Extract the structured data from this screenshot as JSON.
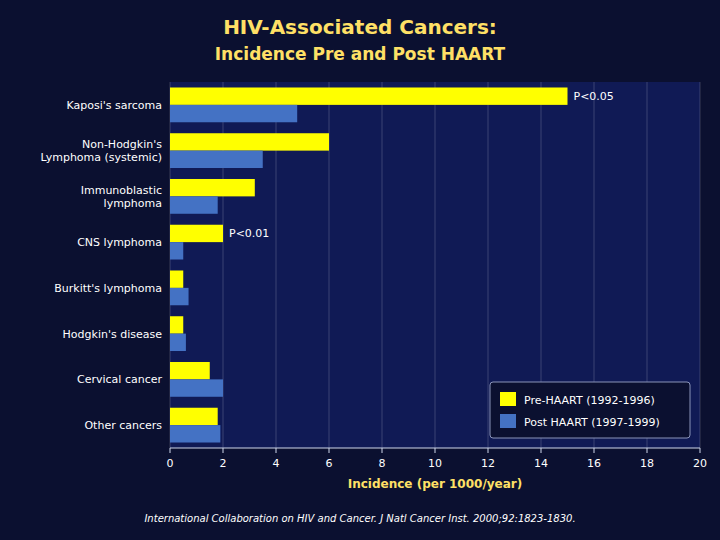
{
  "chart_data": {
    "type": "bar",
    "orientation": "horizontal",
    "title": "HIV-Associated Cancers:",
    "subtitle": "Incidence Pre and Post HAART",
    "categories": [
      "Kaposi's sarcoma",
      "Non-Hodgkin's\nLymphoma (systemic)",
      "Immunoblastic\nlymphoma",
      "CNS lymphoma",
      "Burkitt's lymphoma",
      "Hodgkin's disease",
      "Cervical cancer",
      "Other cancers"
    ],
    "series": [
      {
        "name": "Pre-HAART (1992-1996)",
        "color": "#FFFF00",
        "values": [
          15.0,
          6.0,
          3.2,
          2.0,
          0.5,
          0.5,
          1.5,
          1.8
        ]
      },
      {
        "name": "Post HAART (1997-1999)",
        "color": "#4472C4",
        "values": [
          4.8,
          3.5,
          1.8,
          0.5,
          0.7,
          0.6,
          2.0,
          1.9
        ]
      }
    ],
    "xlabel": "Incidence (per 1000/year)",
    "xlim": [
      0,
      20
    ],
    "xticks": [
      0,
      2,
      4,
      6,
      8,
      10,
      12,
      14,
      16,
      18,
      20
    ],
    "grid": true,
    "legend": "lower right",
    "annotations": [
      {
        "text": "P<0.05",
        "category": "Kaposi's sarcoma",
        "series": "Pre-HAART (1992-1996)"
      },
      {
        "text": "P<0.01",
        "category": "CNS lymphoma",
        "series": "Pre-HAART (1992-1996)"
      }
    ],
    "footnote": "International Collaboration on HIV and Cancer. J Natl Cancer Inst. 2000;92:1823-1830."
  }
}
